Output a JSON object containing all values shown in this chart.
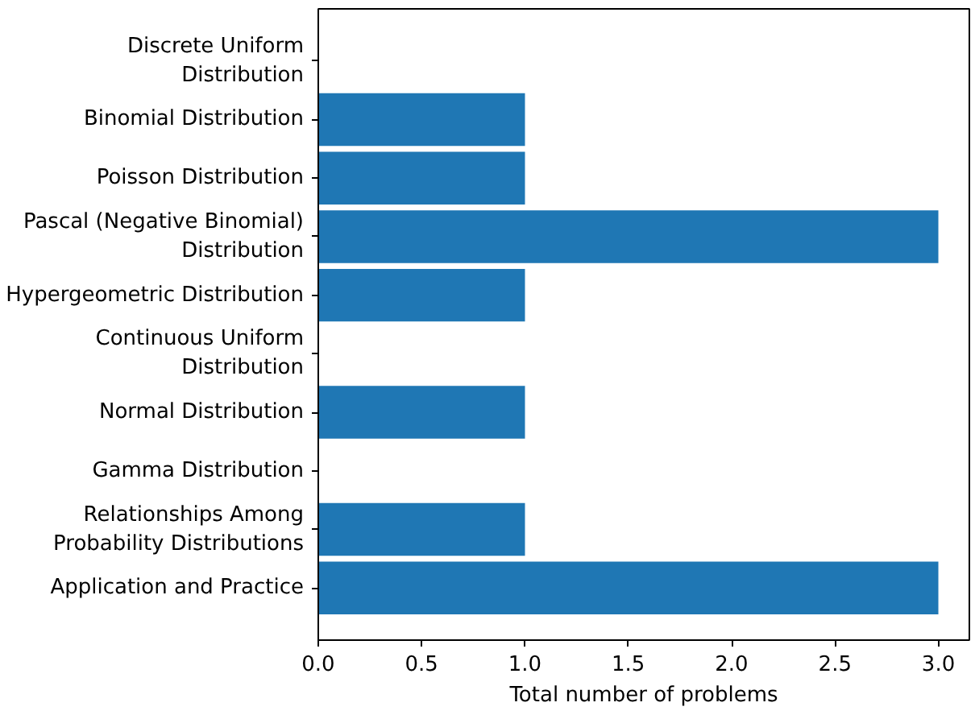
{
  "chart_data": {
    "type": "bar",
    "orientation": "horizontal",
    "xlabel": "Total number of problems",
    "categories": [
      "Discrete Uniform Distribution",
      "Binomial Distribution",
      "Poisson Distribution",
      "Pascal (Negative Binomial) Distribution",
      "Hypergeometric Distribution",
      "Continuous Uniform Distribution",
      "Normal Distribution",
      "Gamma Distribution",
      "Relationships Among Probability Distributions",
      "Application and Practice"
    ],
    "values": [
      0,
      1,
      1,
      3,
      1,
      0,
      1,
      0,
      1,
      3
    ],
    "color": "#1f77b4",
    "xlim": [
      0,
      3.15
    ],
    "xticks": [
      {
        "value": 0,
        "label": "0.0"
      },
      {
        "value": 0.5,
        "label": "0.5"
      },
      {
        "value": 1,
        "label": "1.0"
      },
      {
        "value": 1.5,
        "label": "1.5"
      },
      {
        "value": 2,
        "label": "2.0"
      },
      {
        "value": 2.5,
        "label": "2.5"
      },
      {
        "value": 3,
        "label": "3.0"
      }
    ],
    "grid": false
  }
}
